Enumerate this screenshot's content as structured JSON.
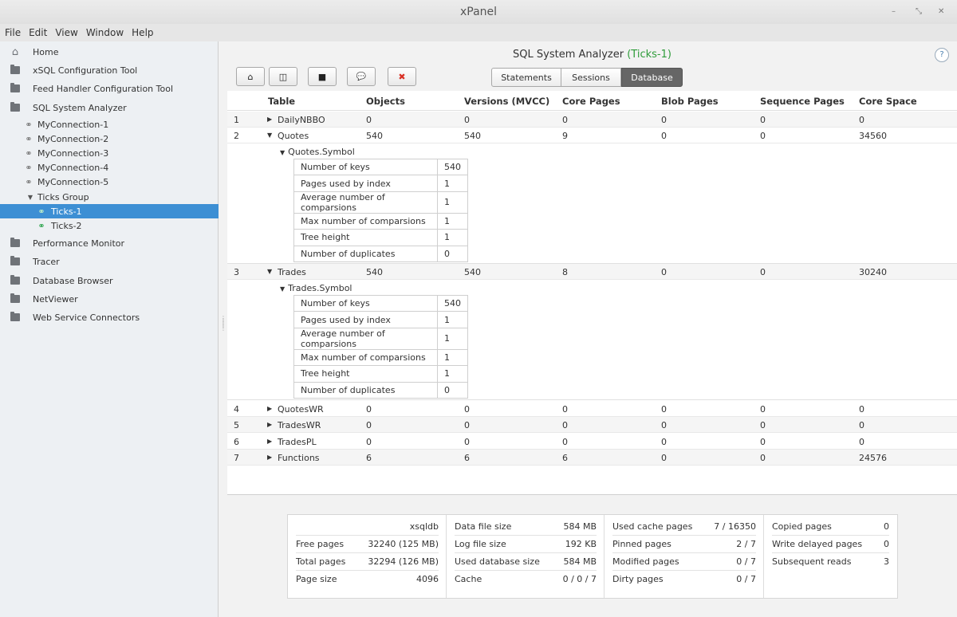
{
  "window": {
    "title": "xPanel",
    "minimize_glyph": "–",
    "restore_glyph": "⤡",
    "close_glyph": "✕"
  },
  "menu": [
    "File",
    "Edit",
    "View",
    "Window",
    "Help"
  ],
  "sidebar": {
    "items": [
      {
        "label": "Home",
        "icon": "home-icon"
      },
      {
        "label": "xSQL Configuration Tool",
        "icon": "folder-icon"
      },
      {
        "label": "Feed Handler Configuration Tool",
        "icon": "folder-icon"
      },
      {
        "label": "SQL System Analyzer",
        "icon": "folder-open-icon"
      },
      {
        "label": "MyConnection-1",
        "icon": "link-icon"
      },
      {
        "label": "MyConnection-2",
        "icon": "link-icon"
      },
      {
        "label": "MyConnection-3",
        "icon": "link-icon"
      },
      {
        "label": "MyConnection-4",
        "icon": "link-icon"
      },
      {
        "label": "MyConnection-5",
        "icon": "link-icon"
      },
      {
        "label": "Ticks Group",
        "icon": "expand-triangle-icon"
      },
      {
        "label": "Ticks-1",
        "icon": "link-icon",
        "selected": true
      },
      {
        "label": "Ticks-2",
        "icon": "link-icon"
      },
      {
        "label": "Performance Monitor",
        "icon": "folder-icon"
      },
      {
        "label": "Tracer",
        "icon": "folder-icon"
      },
      {
        "label": "Database Browser",
        "icon": "folder-icon"
      },
      {
        "label": "NetViewer",
        "icon": "folder-icon"
      },
      {
        "label": "Web Service Connectors",
        "icon": "folder-icon"
      }
    ]
  },
  "main": {
    "title_prefix": "SQL System Analyzer ",
    "title_accent": "(Ticks-1)",
    "help": "?",
    "toolbar": [
      {
        "name": "home-button",
        "glyph": "⌂",
        "icon": "home-icon"
      },
      {
        "name": "split-view-button",
        "glyph": "◫",
        "icon": "split-icon"
      },
      {
        "name": "stop-button",
        "glyph": "■",
        "icon": "stop-icon"
      },
      {
        "name": "comment-button",
        "glyph": "💬",
        "icon": "comment-icon"
      },
      {
        "name": "delete-button",
        "glyph": "✖",
        "icon": "delete-icon"
      }
    ],
    "tabs": [
      {
        "label": "Statements",
        "active": false
      },
      {
        "label": "Sessions",
        "active": false
      },
      {
        "label": "Database",
        "active": true
      }
    ],
    "columns": [
      "Table",
      "Objects",
      "Versions (MVCC)",
      "Core Pages",
      "Blob Pages",
      "Sequence Pages",
      "Core Space"
    ],
    "rows": [
      {
        "n": "1",
        "table": "DailyNBBO",
        "expanded": false,
        "objects": "0",
        "versions": "0",
        "core": "0",
        "blob": "0",
        "seq": "0",
        "space": "0"
      },
      {
        "n": "2",
        "table": "Quotes",
        "expanded": true,
        "objects": "540",
        "versions": "540",
        "core": "9",
        "blob": "0",
        "seq": "0",
        "space": "34560",
        "index": {
          "name": "Quotes.Symbol",
          "stats": [
            {
              "k": "Number of keys",
              "v": "540"
            },
            {
              "k": "Pages used by index",
              "v": "1"
            },
            {
              "k": "Average number of comparsions",
              "v": "1"
            },
            {
              "k": "Max number of comparsions",
              "v": "1"
            },
            {
              "k": "Tree height",
              "v": "1"
            },
            {
              "k": "Number of duplicates",
              "v": "0"
            }
          ]
        }
      },
      {
        "n": "3",
        "table": "Trades",
        "expanded": true,
        "objects": "540",
        "versions": "540",
        "core": "8",
        "blob": "0",
        "seq": "0",
        "space": "30240",
        "index": {
          "name": "Trades.Symbol",
          "stats": [
            {
              "k": "Number of keys",
              "v": "540"
            },
            {
              "k": "Pages used by index",
              "v": "1"
            },
            {
              "k": "Average number of comparsions",
              "v": "1"
            },
            {
              "k": "Max number of comparsions",
              "v": "1"
            },
            {
              "k": "Tree height",
              "v": "1"
            },
            {
              "k": "Number of duplicates",
              "v": "0"
            }
          ]
        }
      },
      {
        "n": "4",
        "table": "QuotesWR",
        "expanded": false,
        "objects": "0",
        "versions": "0",
        "core": "0",
        "blob": "0",
        "seq": "0",
        "space": "0"
      },
      {
        "n": "5",
        "table": "TradesWR",
        "expanded": false,
        "objects": "0",
        "versions": "0",
        "core": "0",
        "blob": "0",
        "seq": "0",
        "space": "0"
      },
      {
        "n": "6",
        "table": "TradesPL",
        "expanded": false,
        "objects": "0",
        "versions": "0",
        "core": "0",
        "blob": "0",
        "seq": "0",
        "space": "0"
      },
      {
        "n": "7",
        "table": "Functions",
        "expanded": false,
        "objects": "6",
        "versions": "6",
        "core": "6",
        "blob": "0",
        "seq": "0",
        "space": "24576"
      }
    ]
  },
  "stats": {
    "db_name": "xsqldb",
    "col1": [
      {
        "label": "Free pages",
        "value": "32240 (125 MB)"
      },
      {
        "label": "Total pages",
        "value": "32294 (126 MB)"
      },
      {
        "label": "Page size",
        "value": "4096"
      }
    ],
    "col2": [
      {
        "label": "Data file size",
        "value": "584 MB"
      },
      {
        "label": "Log file size",
        "value": "192 KB"
      },
      {
        "label": "Used database size",
        "value": "584 MB"
      }
    ],
    "cache": {
      "label": "Cache",
      "a": "0",
      "b": "0",
      "c": "7",
      "sep": " / "
    },
    "col3": [
      {
        "label": "Used cache pages",
        "value": "7 / 16350"
      },
      {
        "label": "Pinned pages",
        "value": "2 / 7"
      },
      {
        "label": "Modified pages",
        "value": "0 / 7"
      },
      {
        "label": "Dirty pages",
        "value": "0 / 7"
      }
    ],
    "col4": [
      {
        "label": "Copied pages",
        "value": "0"
      },
      {
        "label": "Write delayed pages",
        "value": "0"
      },
      {
        "label": "Subsequent reads",
        "value": "3"
      }
    ]
  },
  "colors": {
    "accent_green": "#2aa34a",
    "selected_blue": "#3d8fd4",
    "error_red": "#d93025"
  }
}
